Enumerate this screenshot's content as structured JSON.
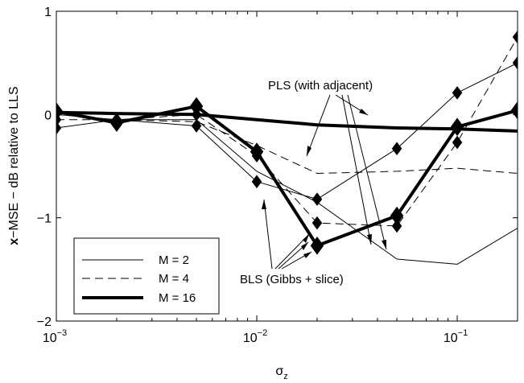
{
  "chart_data": {
    "type": "line",
    "xscale": "log",
    "xlim": [
      0.001,
      0.2
    ],
    "ylim": [
      -2,
      1
    ],
    "xlabel": "σ",
    "xlabel_subscript": "z",
    "ylabel_bold": "x",
    "ylabel_rest": "−MSE − dB relative to LLS",
    "x_ticks": [
      {
        "value": 0.001,
        "base": "10",
        "exp": "−3"
      },
      {
        "value": 0.01,
        "base": "10",
        "exp": "−2"
      },
      {
        "value": 0.1,
        "base": "10",
        "exp": "−1"
      }
    ],
    "y_ticks": [
      {
        "value": 1,
        "label": "1"
      },
      {
        "value": 0,
        "label": "0"
      },
      {
        "value": -1,
        "label": "−1"
      },
      {
        "value": -2,
        "label": "−2"
      }
    ],
    "grid": false,
    "legend": {
      "position": "bottom-left",
      "entries": [
        {
          "label": "M = 2",
          "style": "thin-solid"
        },
        {
          "label": "M = 4",
          "style": "dashed"
        },
        {
          "label": "M = 16",
          "style": "thick-solid"
        }
      ]
    },
    "series": [
      {
        "method": "PLS",
        "M": 2,
        "style": "thin-solid",
        "x": [
          0.001,
          0.002,
          0.005,
          0.01,
          0.02,
          0.05,
          0.1,
          0.2
        ],
        "y": [
          0.0,
          -0.05,
          -0.05,
          -0.55,
          -0.85,
          -1.4,
          -1.45,
          -1.1
        ]
      },
      {
        "method": "PLS",
        "M": 4,
        "style": "dashed",
        "x": [
          0.001,
          0.002,
          0.005,
          0.01,
          0.02,
          0.05,
          0.1,
          0.2
        ],
        "y": [
          0.0,
          -0.05,
          -0.07,
          -0.3,
          -0.57,
          -0.55,
          -0.52,
          -0.57
        ]
      },
      {
        "method": "PLS",
        "M": 16,
        "style": "thick-solid",
        "x": [
          0.001,
          0.002,
          0.005,
          0.01,
          0.02,
          0.05,
          0.1,
          0.2
        ],
        "y": [
          0.02,
          0.01,
          0.0,
          -0.05,
          -0.1,
          -0.13,
          -0.14,
          -0.16
        ]
      },
      {
        "method": "BLS",
        "M": 2,
        "style": "thin-solid",
        "markers": true,
        "x": [
          0.001,
          0.002,
          0.005,
          0.01,
          0.02,
          0.05,
          0.1,
          0.2
        ],
        "y": [
          -0.13,
          -0.05,
          -0.11,
          -0.65,
          -0.82,
          -0.33,
          0.21,
          0.5
        ]
      },
      {
        "method": "BLS",
        "M": 4,
        "style": "dashed",
        "markers": true,
        "x": [
          0.001,
          0.002,
          0.005,
          0.01,
          0.02,
          0.05,
          0.1,
          0.2
        ],
        "y": [
          -0.05,
          -0.05,
          0.0,
          -0.4,
          -1.05,
          -1.08,
          -0.27,
          0.75
        ]
      },
      {
        "method": "BLS",
        "M": 16,
        "style": "thick-solid",
        "markers": true,
        "x": [
          0.001,
          0.002,
          0.005,
          0.01,
          0.02,
          0.05,
          0.1,
          0.2
        ],
        "y": [
          0.03,
          -0.08,
          0.08,
          -0.36,
          -1.27,
          -0.98,
          -0.12,
          0.04
        ]
      }
    ],
    "annotations": [
      {
        "text": "PLS (with adjacent)"
      },
      {
        "text": "BLS (Gibbs + slice)"
      }
    ]
  }
}
